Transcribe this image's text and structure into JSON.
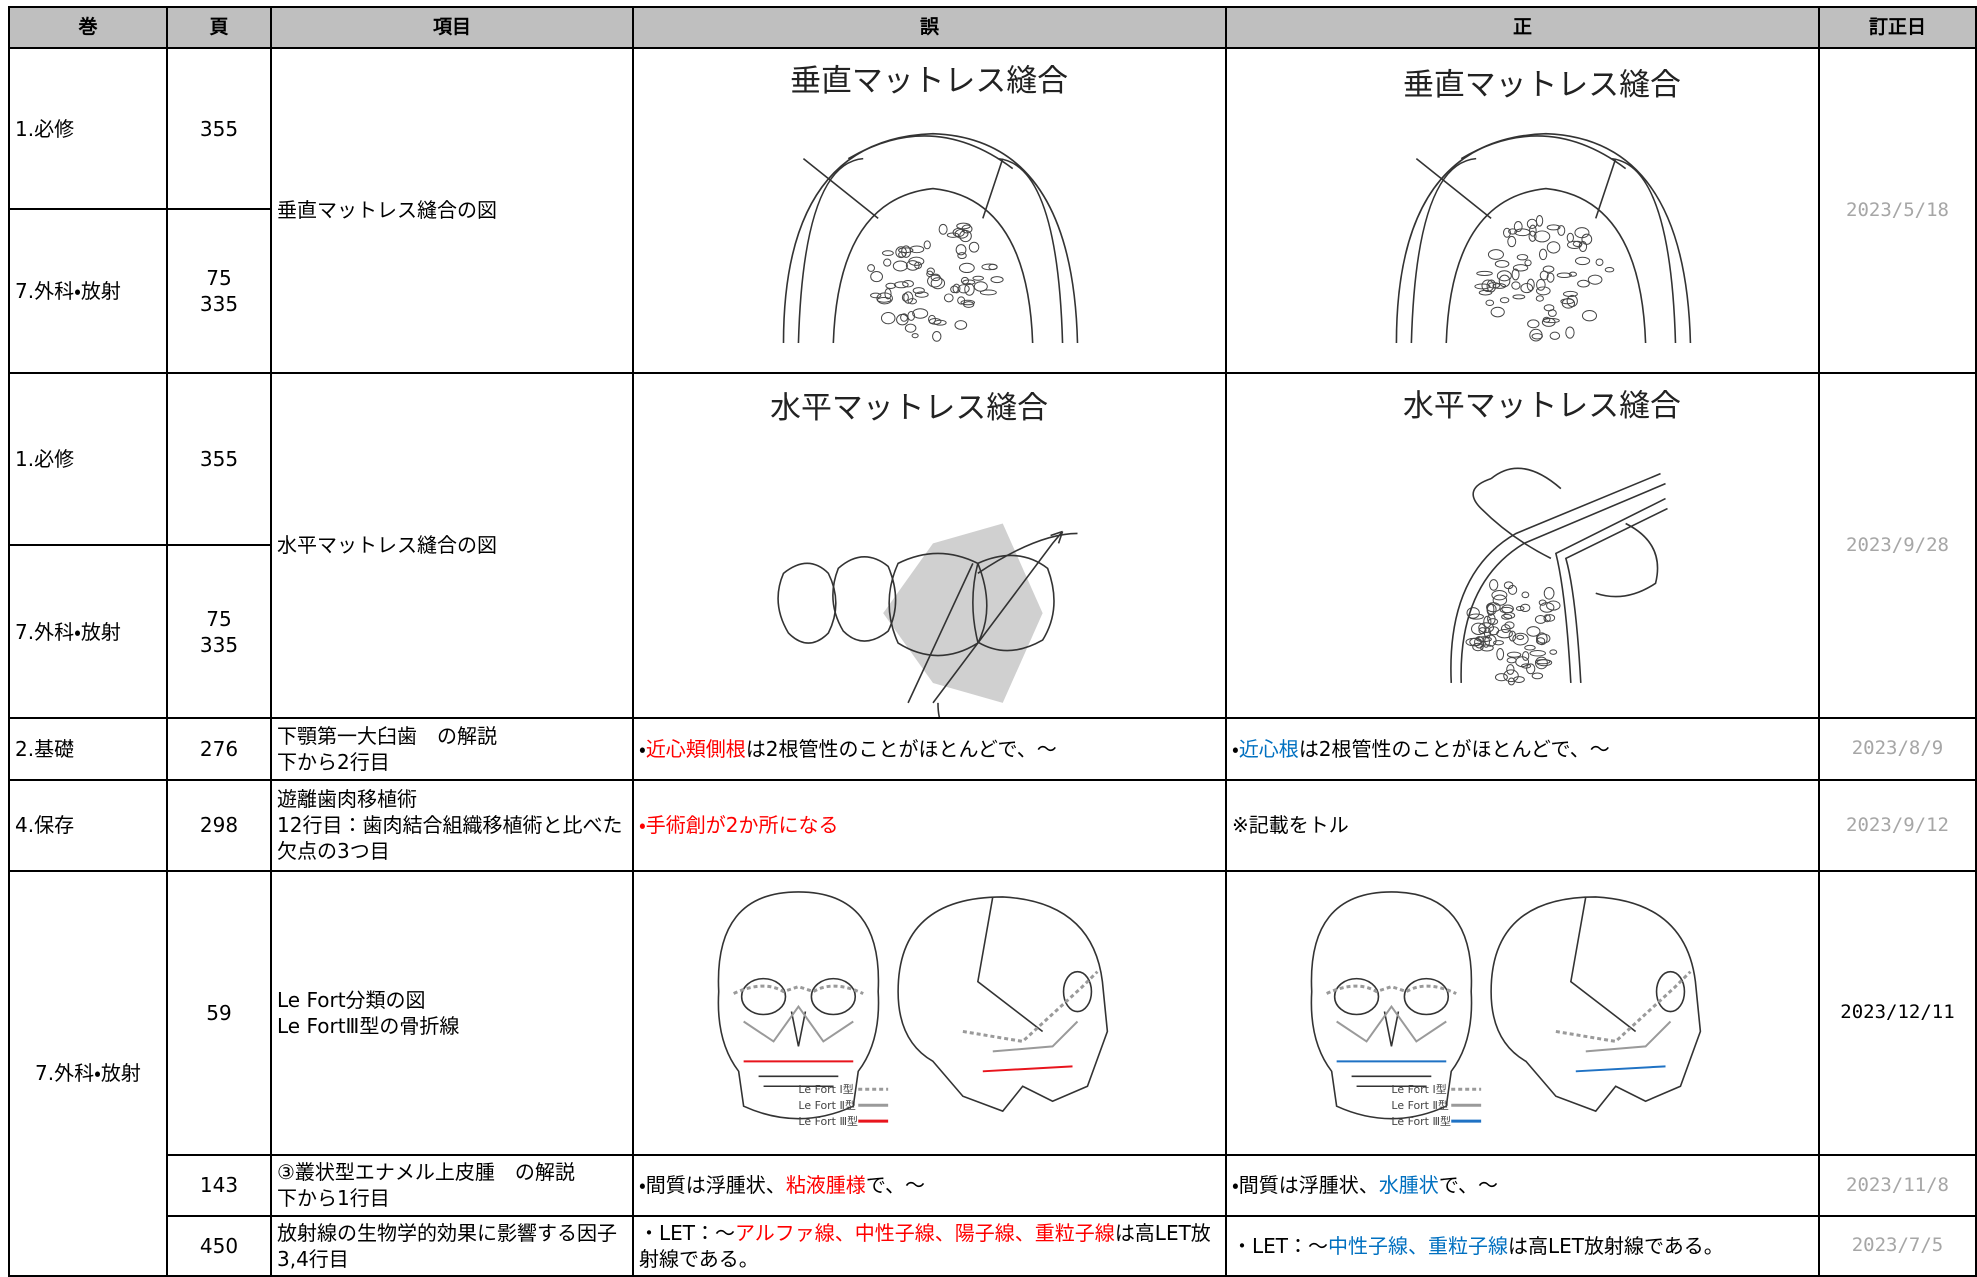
{
  "table": {
    "header": [
      "巻",
      "頁",
      "項目",
      "誤",
      "正",
      "訂正日"
    ],
    "rows": [
      {
        "volume": "1.必修",
        "page": [
          "355"
        ],
        "item": [
          "垂直マットレス縫合の図"
        ],
        "wrong": {
          "figure_title": "垂直マットレス縫合"
        },
        "correct": {
          "figure_title": "垂直マットレス縫合"
        },
        "date": "2023/5/18",
        "date_color": "#a6a6a6"
      },
      {
        "volume": "7.外科・放射",
        "page": [
          "75",
          "335"
        ]
      },
      {
        "volume": "1.必修",
        "page": [
          "355"
        ],
        "item": [
          "水平マットレス縫合の図"
        ],
        "wrong": {
          "figure_title": "水平マットレス縫合"
        },
        "correct": {
          "figure_title": "水平マットレス縫合"
        },
        "date": "2023/9/28",
        "date_color": "#a6a6a6"
      },
      {
        "volume": "7.外科・放射",
        "page": [
          "75",
          "335"
        ]
      },
      {
        "volume": "2.基礎",
        "page": [
          "276"
        ],
        "item": [
          "下顎第一大臼歯　の解説",
          "下から2行目"
        ],
        "wrong": {
          "text": [
            {
              "text": "・"
            },
            {
              "text": "近心頬側根",
              "color": "#ff0000"
            },
            {
              "text": "は2根管性のことがほとんどで、～"
            }
          ]
        },
        "correct": {
          "text": [
            {
              "text": "・"
            },
            {
              "text": "近心根",
              "color": "#0070c0"
            },
            {
              "text": "は2根管性のことがほとんどで、～"
            }
          ]
        },
        "date": "2023/8/9",
        "date_color": "#a6a6a6"
      },
      {
        "volume": "4.保存",
        "page": [
          "298"
        ],
        "item": [
          "遊離歯肉移植術",
          "12行目：歯肉結合組織移植術と比べた欠点の3つ目"
        ],
        "wrong": {
          "text": [
            {
              "text": "・手術創が2か所になる",
              "color": "#ff0000"
            }
          ]
        },
        "correct": {
          "text": [
            {
              "text": "※記載をトル"
            }
          ]
        },
        "date": "2023/9/12",
        "date_color": "#a6a6a6"
      },
      {
        "volume": "7.外科・放射",
        "page": [
          "59"
        ],
        "item": [
          "Le Fort分類の図",
          "Le FortⅢ型の骨折線"
        ],
        "wrong": {
          "legend": [
            {
              "label": "Le Fort Ⅰ型",
              "color": "#9a9a9a",
              "dash": "4 3"
            },
            {
              "label": "Le Fort Ⅱ型",
              "color": "#9a9a9a"
            },
            {
              "label": "Le Fort Ⅲ型",
              "color": "#e8141c"
            }
          ]
        },
        "correct": {
          "legend": [
            {
              "label": "Le Fort Ⅰ型",
              "color": "#9a9a9a",
              "dash": "4 3"
            },
            {
              "label": "Le Fort Ⅱ型",
              "color": "#9a9a9a"
            },
            {
              "label": "Le Fort Ⅲ型",
              "color": "#1f72c4"
            }
          ]
        },
        "date": "2023/12/11",
        "date_color": "#000000"
      },
      {
        "page": [
          "143"
        ],
        "item": [
          "③叢状型エナメル上皮腫　の解説",
          "下から1行目"
        ],
        "wrong": {
          "text": [
            {
              "text": "・間質は浮腫状、"
            },
            {
              "text": "粘液腫様",
              "color": "#ff0000"
            },
            {
              "text": "で、～"
            }
          ]
        },
        "correct": {
          "text": [
            {
              "text": "・間質は浮腫状、"
            },
            {
              "text": "水腫状",
              "color": "#0070c0"
            },
            {
              "text": "で、～"
            }
          ]
        },
        "date": "2023/11/8",
        "date_color": "#a6a6a6"
      },
      {
        "page": [
          "450"
        ],
        "item": [
          "放射線の生物学的効果に影響する因子　3,4行目"
        ],
        "wrong": {
          "text": [
            {
              "text": "・LET：～"
            },
            {
              "text": "アルファ線、中性子線、陽子線、重粒子線",
              "color": "#ff0000"
            },
            {
              "text": "は高LET放射線である。"
            }
          ]
        },
        "correct": {
          "text": [
            {
              "text": "・LET：～"
            },
            {
              "text": "中性子線、重粒子線",
              "color": "#0070c0"
            },
            {
              "text": "は高LET放射線である。"
            }
          ]
        },
        "date": "2023/7/5",
        "date_color": "#a6a6a6"
      }
    ]
  }
}
